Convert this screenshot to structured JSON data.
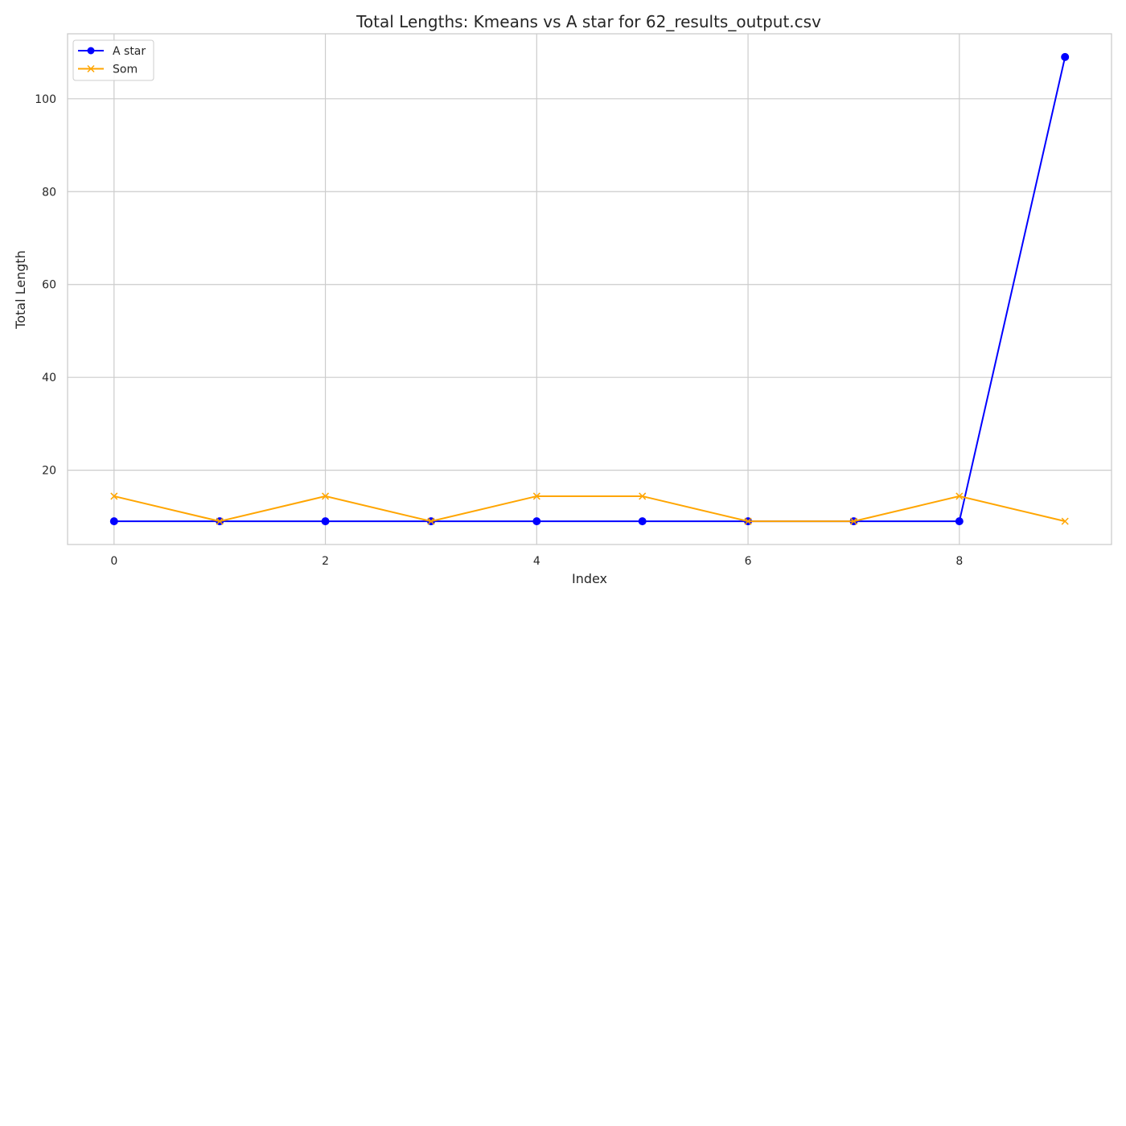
{
  "chart_data": {
    "type": "line",
    "title": "Total Lengths: Kmeans vs A star  for 62_results_output.csv",
    "xlabel": "Index",
    "ylabel": "Total Length",
    "x": [
      0,
      1,
      2,
      3,
      4,
      5,
      6,
      7,
      8,
      9
    ],
    "xticks": [
      0,
      2,
      4,
      6,
      8
    ],
    "yticks": [
      20,
      40,
      60,
      80,
      100
    ],
    "xlim": [
      -0.44,
      9.44
    ],
    "ylim": [
      4,
      114
    ],
    "grid": true,
    "legend_position": "top-left",
    "series": [
      {
        "name": "A star",
        "marker": "circle",
        "color": "#0000ff",
        "values": [
          9,
          9,
          9,
          9,
          9,
          9,
          9,
          9,
          9,
          109
        ]
      },
      {
        "name": "Som",
        "marker": "x",
        "color": "#ffa500",
        "values": [
          14.4,
          9,
          14.4,
          9,
          14.4,
          14.4,
          9,
          9,
          14.4,
          9
        ]
      }
    ]
  }
}
